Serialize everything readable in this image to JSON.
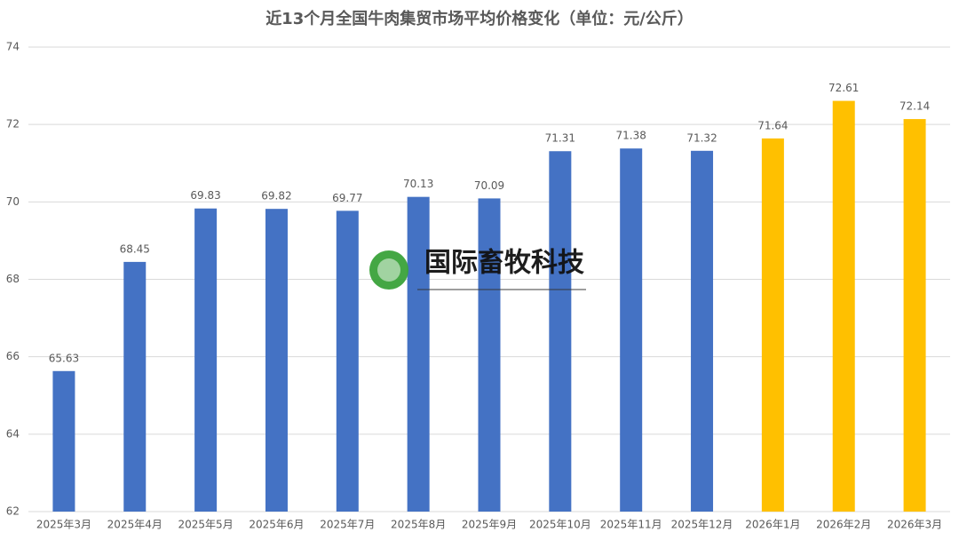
{
  "chart_data": {
    "type": "bar",
    "title": "近13个月全国牛肉集贸市场平均价格变化（单位：元/公斤）",
    "categories": [
      "2025年3月",
      "2025年4月",
      "2025年5月",
      "2025年6月",
      "2025年7月",
      "2025年8月",
      "2025年9月",
      "2025年10月",
      "2025年11月",
      "2025年12月",
      "2026年1月",
      "2026年2月",
      "2026年3月"
    ],
    "values": [
      65.63,
      68.45,
      69.83,
      69.82,
      69.77,
      70.13,
      70.09,
      71.31,
      71.38,
      71.32,
      71.64,
      72.61,
      72.14
    ],
    "colors": [
      "#4472c4",
      "#4472c4",
      "#4472c4",
      "#4472c4",
      "#4472c4",
      "#4472c4",
      "#4472c4",
      "#4472c4",
      "#4472c4",
      "#4472c4",
      "#ffc000",
      "#ffc000",
      "#ffc000"
    ],
    "ylim": [
      62,
      74
    ],
    "yticks": [
      62,
      64,
      66,
      68,
      70,
      72,
      74
    ],
    "grid": true,
    "watermark": "国际畜牧科技"
  }
}
